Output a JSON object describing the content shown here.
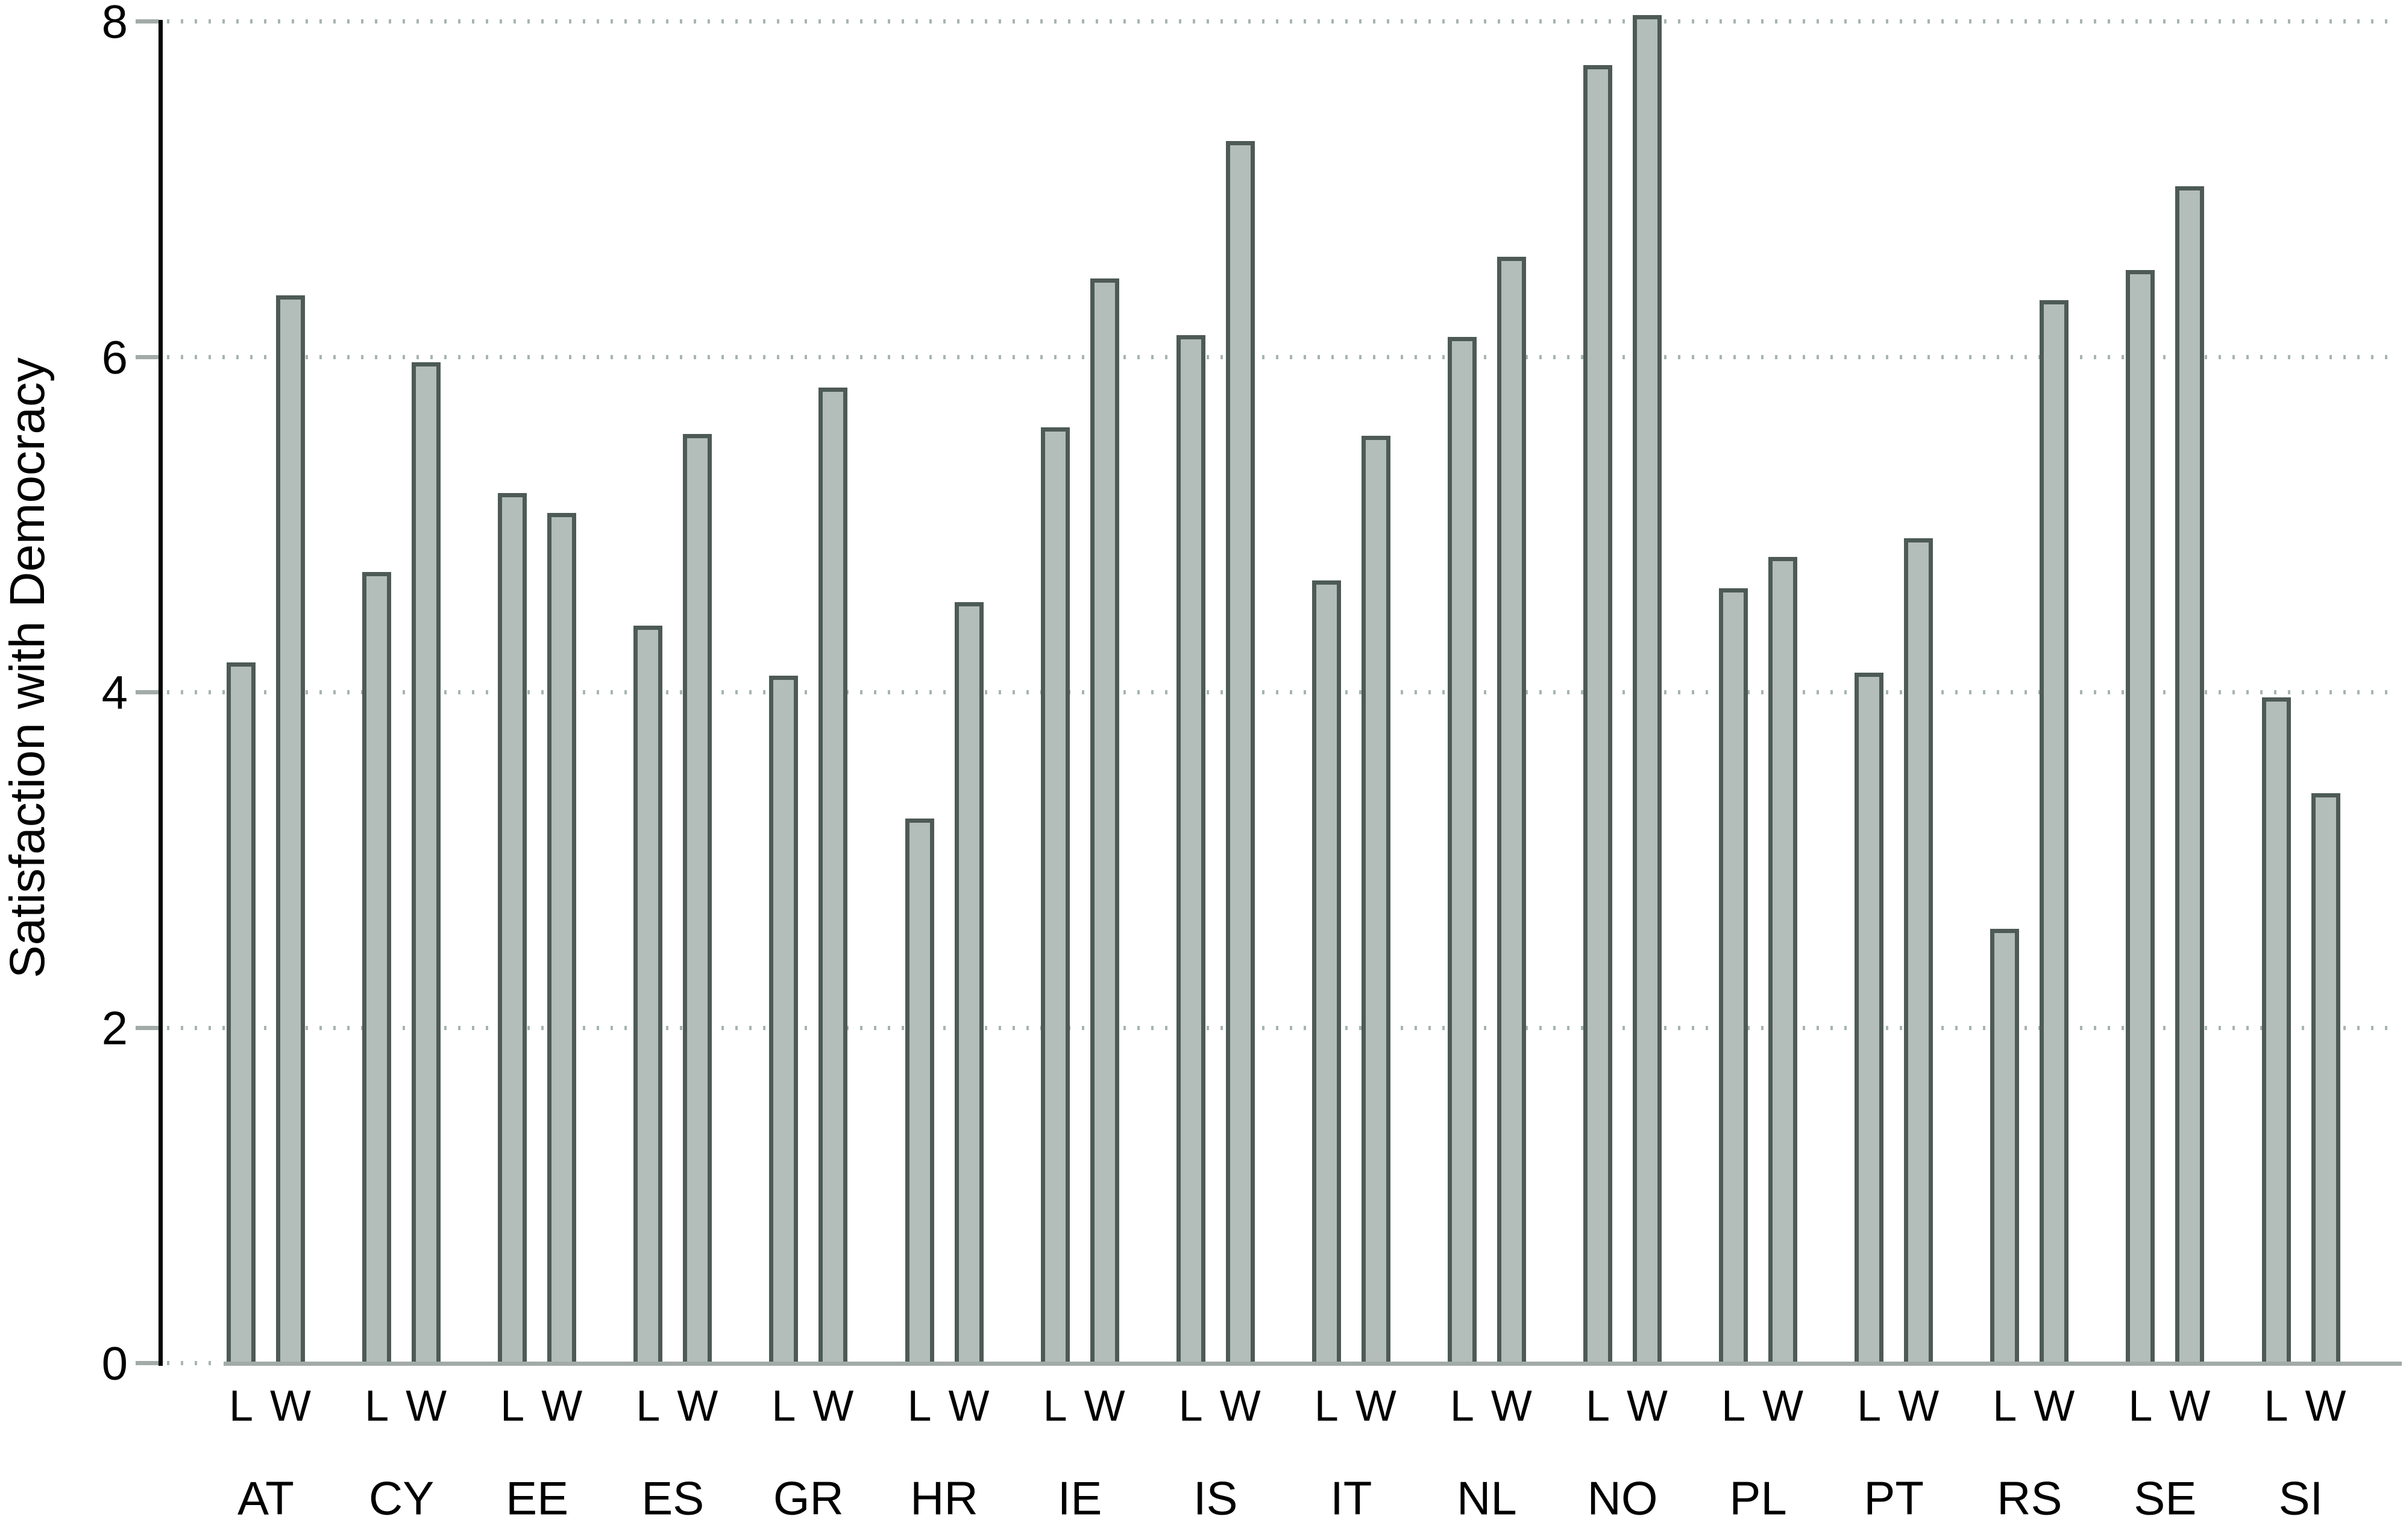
{
  "figure": {
    "ylabel": "Satisfaction with Democracy"
  },
  "chart_data": {
    "type": "bar",
    "title": "",
    "xlabel": "",
    "ylabel": "Satisfaction with Democracy",
    "ylim": [
      0,
      8
    ],
    "yticks": [
      0,
      2,
      4,
      6,
      8
    ],
    "grid": "horizontal dotted lines at each y tick, drawn behind bars",
    "legend_position": "none",
    "categories": [
      "AT",
      "CY",
      "EE",
      "ES",
      "GR",
      "HR",
      "IE",
      "IS",
      "IT",
      "NL",
      "NO",
      "PL",
      "PT",
      "RS",
      "SE",
      "SI"
    ],
    "series": [
      {
        "name": "L",
        "values": [
          4.18,
          4.72,
          5.19,
          4.4,
          4.1,
          3.25,
          5.58,
          6.13,
          4.67,
          6.12,
          7.74,
          4.62,
          4.12,
          2.59,
          6.52,
          3.97
        ]
      },
      {
        "name": "W",
        "values": [
          6.37,
          5.97,
          5.07,
          5.54,
          5.82,
          4.54,
          6.47,
          7.29,
          5.53,
          6.6,
          8.04,
          4.81,
          4.92,
          6.34,
          7.02,
          3.4
        ]
      }
    ],
    "colors": {
      "bar_fill": "#b3bdb9",
      "bar_border": "#4d5a56",
      "grid_dots": "#a7b5af",
      "axis_line": "#000000",
      "baseline": "#a2aba7",
      "tick_mark": "#a2aba7",
      "text": "#000000"
    }
  }
}
